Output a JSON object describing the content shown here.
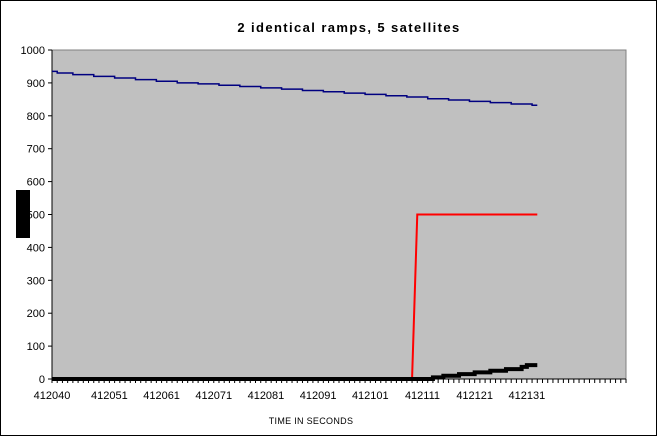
{
  "chart_data": {
    "type": "line",
    "title": "2 identical ramps, 5 satellites",
    "xlabel": "TIME IN SECONDS",
    "ylabel": "",
    "xlim": [
      412040,
      412150
    ],
    "ylim": [
      0,
      1000
    ],
    "y_ticks": [
      0,
      100,
      200,
      300,
      400,
      500,
      600,
      700,
      800,
      900,
      1000
    ],
    "x_tick_labels": [
      "412040",
      "412051",
      "412061",
      "412071",
      "412081",
      "412091",
      "412101",
      "412111",
      "412121",
      "412131"
    ],
    "grid": false,
    "plot_background": "#c0c0c0",
    "series": [
      {
        "color": "#000080",
        "points": [
          [
            412040,
            935
          ],
          [
            412041,
            930
          ],
          [
            412044,
            925
          ],
          [
            412048,
            920
          ],
          [
            412052,
            915
          ],
          [
            412056,
            910
          ],
          [
            412060,
            905
          ],
          [
            412064,
            900
          ],
          [
            412068,
            897
          ],
          [
            412072,
            893
          ],
          [
            412076,
            889
          ],
          [
            412080,
            885
          ],
          [
            412084,
            881
          ],
          [
            412088,
            877
          ],
          [
            412092,
            873
          ],
          [
            412096,
            869
          ],
          [
            412100,
            865
          ],
          [
            412104,
            861
          ],
          [
            412108,
            857
          ],
          [
            412112,
            852
          ],
          [
            412116,
            848
          ],
          [
            412120,
            844
          ],
          [
            412124,
            840
          ],
          [
            412128,
            836
          ],
          [
            412132,
            832
          ],
          [
            412133,
            832
          ]
        ]
      },
      {
        "color": "#ff0000",
        "points": [
          [
            412040,
            0
          ],
          [
            412109,
            0
          ],
          [
            412110,
            500
          ],
          [
            412133,
            500
          ]
        ]
      },
      {
        "color": "#000000",
        "points": [
          [
            412040,
            0
          ],
          [
            412110,
            0
          ],
          [
            412113,
            5
          ],
          [
            412115,
            10
          ],
          [
            412118,
            15
          ],
          [
            412121,
            20
          ],
          [
            412124,
            25
          ],
          [
            412127,
            30
          ],
          [
            412130,
            37
          ],
          [
            412131,
            42
          ],
          [
            412133,
            42
          ]
        ]
      }
    ]
  }
}
